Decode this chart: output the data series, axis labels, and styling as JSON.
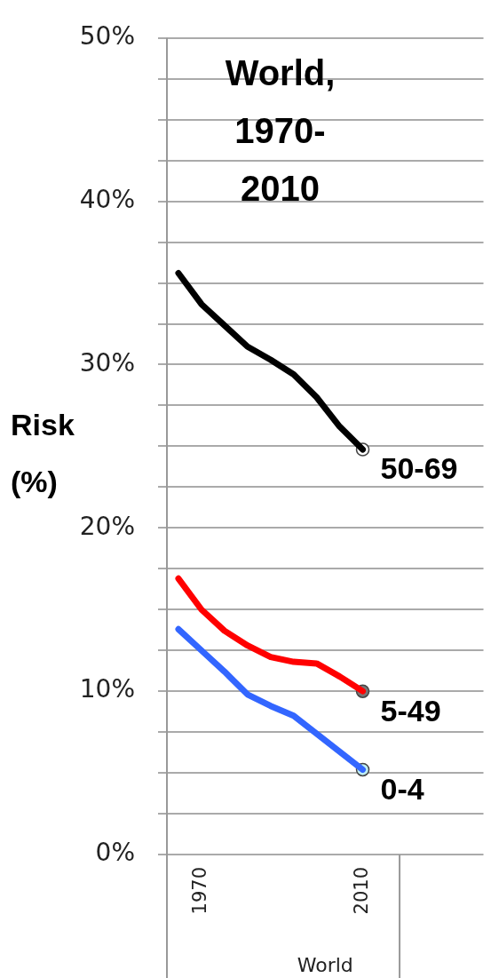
{
  "chart_data": {
    "type": "line",
    "title": "World, 1970-2010",
    "xlabel": "World",
    "ylabel": "Risk (%)",
    "categories": [
      null,
      "1970",
      null,
      null,
      null,
      null,
      null,
      null,
      "2010"
    ],
    "ylim": [
      0,
      50
    ],
    "yticks": [
      {
        "value": 0,
        "label": "0%"
      },
      {
        "value": 2.5,
        "label": null
      },
      {
        "value": 5,
        "label": null
      },
      {
        "value": 7.5,
        "label": null
      },
      {
        "value": 10,
        "label": "10%"
      },
      {
        "value": 12.5,
        "label": null
      },
      {
        "value": 15,
        "label": null
      },
      {
        "value": 17.5,
        "label": null
      },
      {
        "value": 20,
        "label": "20%"
      },
      {
        "value": 22.5,
        "label": null
      },
      {
        "value": 25,
        "label": null
      },
      {
        "value": 27.5,
        "label": null
      },
      {
        "value": 30,
        "label": "30%"
      },
      {
        "value": 32.5,
        "label": null
      },
      {
        "value": 35,
        "label": null
      },
      {
        "value": 37.5,
        "label": null
      },
      {
        "value": 40,
        "label": "40%"
      },
      {
        "value": 42.5,
        "label": null
      },
      {
        "value": 45,
        "label": null
      },
      {
        "value": 47.5,
        "label": null
      },
      {
        "value": 50,
        "label": "50%"
      }
    ],
    "grid": "y",
    "legend": false,
    "marker": "none",
    "line_style": "solid",
    "series": [
      {
        "name": "50-69",
        "color": "#000000",
        "values": [
          35.6,
          33.7,
          32.4,
          31.1,
          30.3,
          29.4,
          28.0,
          26.2,
          24.8
        ]
      },
      {
        "name": "5-49",
        "color": "#ff0000",
        "values": [
          16.9,
          15.0,
          13.7,
          12.8,
          12.1,
          11.8,
          11.7,
          10.9,
          10.0
        ]
      },
      {
        "name": "0-4",
        "color": "#3366ff",
        "values": [
          13.8,
          12.5,
          11.2,
          9.8,
          9.1,
          8.5,
          7.4,
          6.3,
          5.2
        ]
      },
      {
        "type": "scatter",
        "marker": "circle",
        "color": "#ffffff",
        "values": [
          null,
          null,
          null,
          null,
          null,
          null,
          null,
          null,
          24.8
        ]
      },
      {
        "type": "scatter",
        "marker": "circle",
        "color": "#777777",
        "values": [
          null,
          null,
          null,
          null,
          null,
          null,
          null,
          null,
          10.0
        ]
      },
      {
        "type": "scatter",
        "marker": "circle",
        "color": "#bfeef2",
        "values": [
          null,
          null,
          null,
          null,
          null,
          null,
          null,
          null,
          5.2
        ]
      }
    ]
  }
}
